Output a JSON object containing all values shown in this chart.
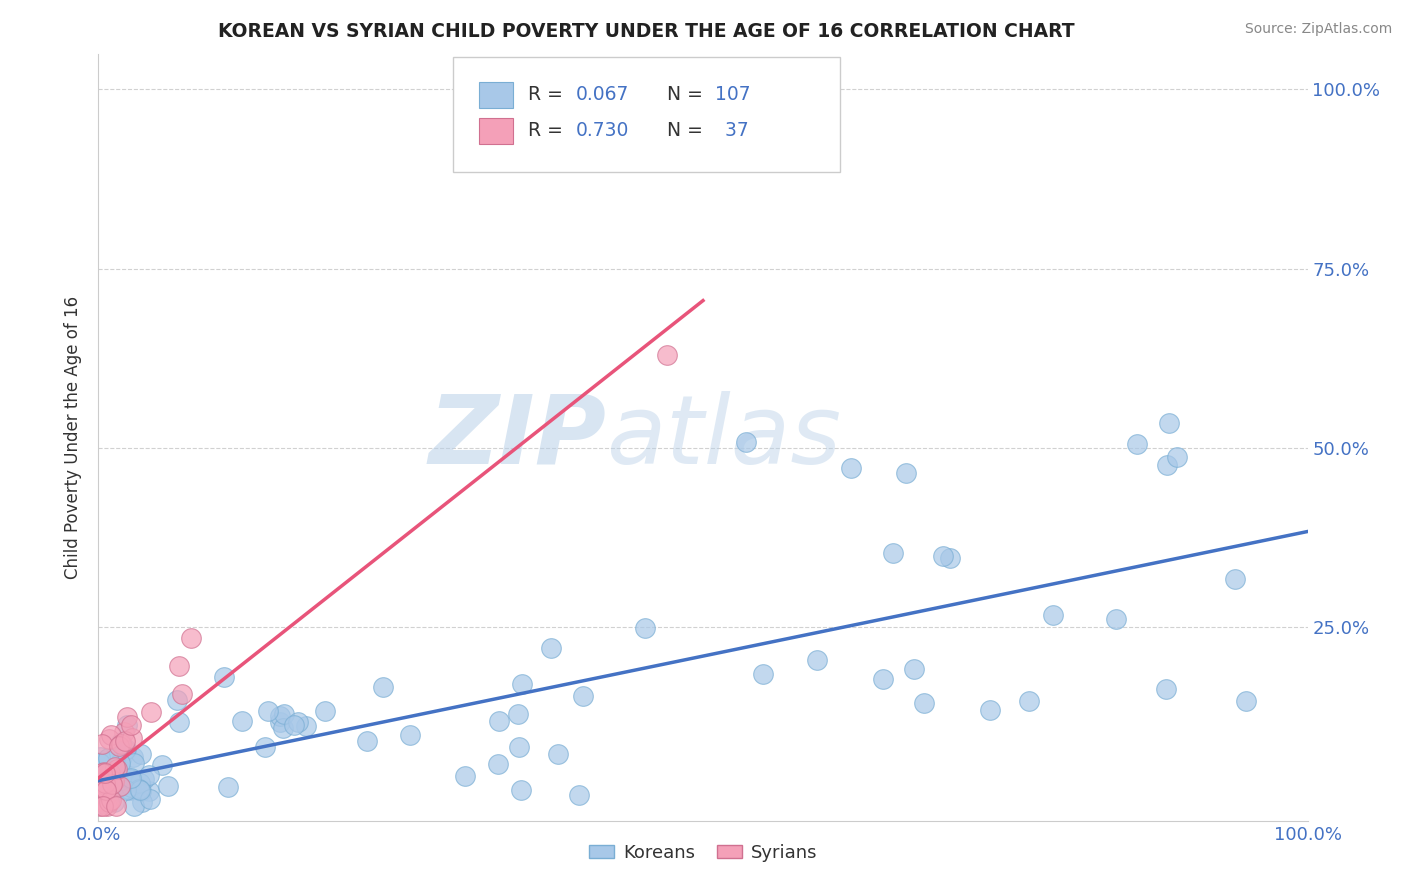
{
  "title": "KOREAN VS SYRIAN CHILD POVERTY UNDER THE AGE OF 16 CORRELATION CHART",
  "source": "Source: ZipAtlas.com",
  "ylabel": "Child Poverty Under the Age of 16",
  "korean_R": 0.067,
  "korean_N": 107,
  "syrian_R": 0.73,
  "syrian_N": 37,
  "korean_color": "#a8c8e8",
  "syrian_color": "#f4a0b8",
  "korean_line_color": "#4472c4",
  "syrian_line_color": "#e8547a",
  "watermark_zip": "ZIP",
  "watermark_atlas": "atlas",
  "background_color": "#ffffff",
  "xmin": 0.0,
  "xmax": 1.0,
  "ymin": -0.02,
  "ymax": 1.05,
  "tick_color": "#4472c4",
  "grid_color": "#cccccc",
  "label_color": "#333333"
}
